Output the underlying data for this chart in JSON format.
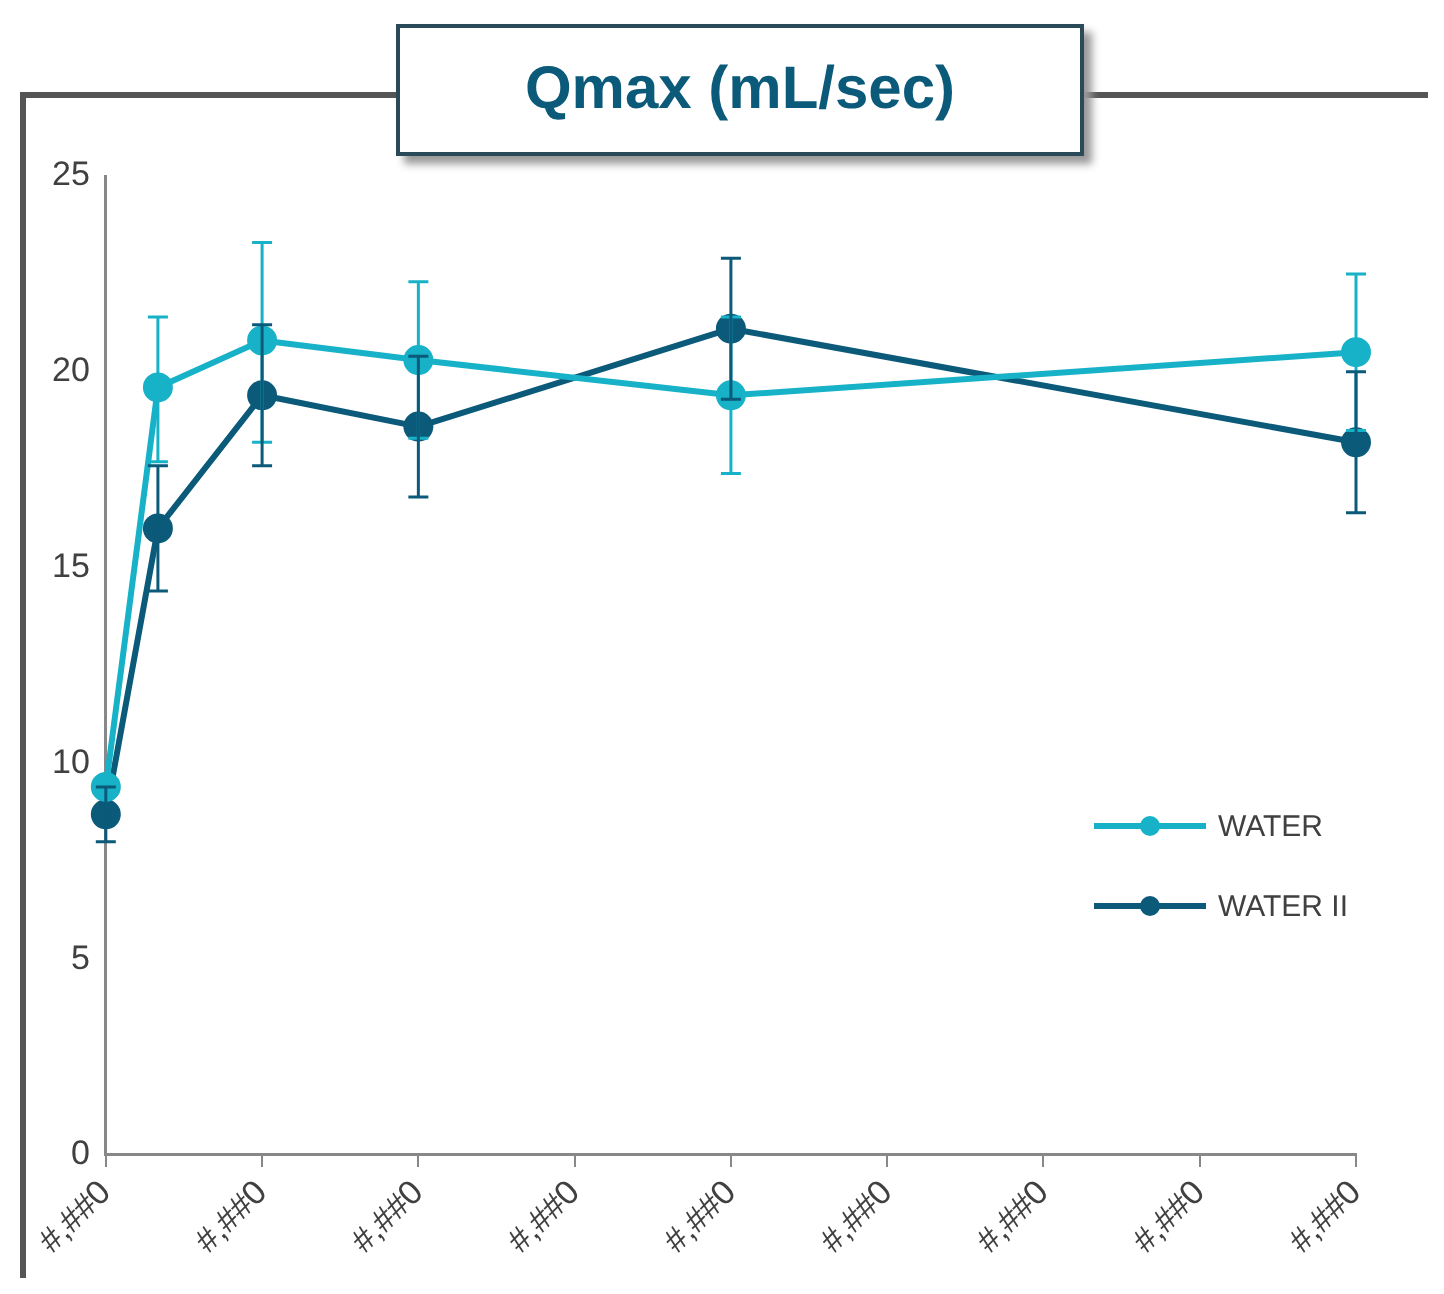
{
  "chart_data": {
    "type": "line",
    "title": "Qmax (mL/sec)",
    "categories": [
      "#,##0",
      null,
      null,
      "#,##0",
      null,
      null,
      "#,##0",
      null,
      null,
      "#,##0",
      null,
      null,
      "#,##0",
      null,
      null,
      "#,##0",
      null,
      null,
      "#,##0",
      null,
      null,
      "#,##0",
      null,
      null,
      "#,##0"
    ],
    "series": [
      {
        "name": "WATER",
        "color": "#17b2c8",
        "values": [
          9.4,
          19.6,
          null,
          20.8,
          null,
          null,
          20.3,
          null,
          null,
          null,
          null,
          null,
          19.4,
          null,
          null,
          null,
          null,
          null,
          null,
          null,
          null,
          null,
          null,
          null,
          20.5
        ],
        "errors": [
          null,
          [
            17.7,
            21.4
          ],
          null,
          [
            18.2,
            23.3
          ],
          null,
          null,
          [
            18.3,
            22.3
          ],
          null,
          null,
          null,
          null,
          null,
          [
            17.4,
            21.4
          ],
          null,
          null,
          null,
          null,
          null,
          null,
          null,
          null,
          null,
          null,
          null,
          [
            18.5,
            22.5
          ]
        ]
      },
      {
        "name": "WATER II",
        "color": "#0b5a7a",
        "values": [
          8.7,
          16.0,
          null,
          19.4,
          null,
          null,
          18.6,
          null,
          null,
          null,
          null,
          null,
          21.1,
          null,
          null,
          null,
          null,
          null,
          null,
          null,
          null,
          null,
          null,
          null,
          18.2
        ],
        "errors": [
          [
            8.0,
            9.4
          ],
          [
            14.4,
            17.6
          ],
          null,
          [
            17.6,
            21.2
          ],
          null,
          null,
          [
            16.8,
            20.4
          ],
          null,
          null,
          null,
          null,
          null,
          [
            19.3,
            22.9
          ],
          null,
          null,
          null,
          null,
          null,
          null,
          null,
          null,
          null,
          null,
          null,
          [
            16.4,
            20.0
          ]
        ]
      }
    ],
    "ylim": [
      0,
      25
    ],
    "yticks": [
      0,
      5,
      10,
      15,
      20,
      25
    ],
    "grid": false,
    "legend": "right",
    "marker": "circle"
  }
}
